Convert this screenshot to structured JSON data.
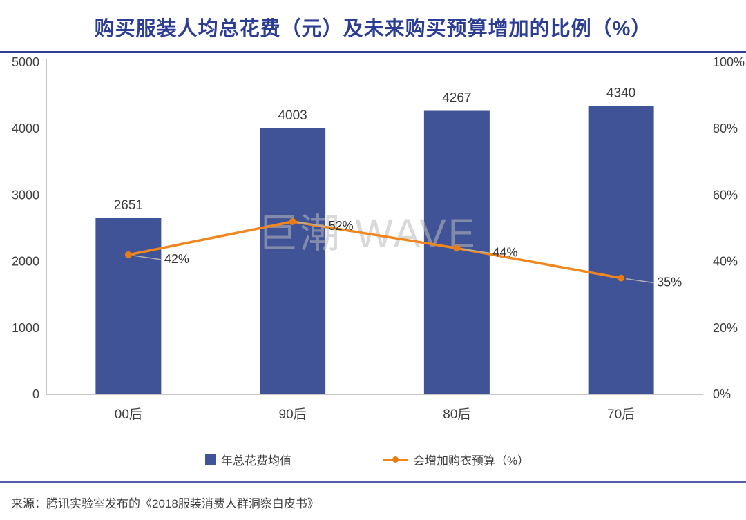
{
  "title": "购买服装人均总花费（元）及未来购买预算增加的比例（%）",
  "watermark": "巨潮  WAVE",
  "source": "来源：腾讯实验室发布的《2018服装消费人群洞察白皮书》",
  "colors": {
    "bar": "#3f5396",
    "line": "#f0861d",
    "marker": "#e87d15",
    "title": "#2c3d94",
    "divider_top": "#2e3f94",
    "divider_bottom": "#575cab",
    "axis_line": "#c6c6c6",
    "text": "#3f3f3f",
    "leader": "#b0b0b0",
    "watermark": "rgba(185,185,185,0.55)"
  },
  "chart_data": {
    "type": "bar+line combo",
    "title": "购买服装人均总花费（元）及未来购买预算增加的比例（%）",
    "categories": [
      "00后",
      "90后",
      "80后",
      "70后"
    ],
    "series": [
      {
        "name": "年总花费均值",
        "type": "bar",
        "axis": "left",
        "values": [
          2651,
          4003,
          4267,
          4340
        ],
        "labels": [
          "2651",
          "4003",
          "4267",
          "4340"
        ]
      },
      {
        "name": "会增加购衣预算（%）",
        "type": "line",
        "axis": "right",
        "values": [
          42,
          52,
          44,
          35
        ],
        "labels": [
          "42%",
          "52%",
          "44%",
          "35%"
        ]
      }
    ],
    "left_axis": {
      "min": 0,
      "max": 5000,
      "ticks": [
        "5000",
        "4000",
        "3000",
        "2000",
        "1000",
        "0"
      ]
    },
    "right_axis": {
      "min": 0,
      "max": 100,
      "ticks": [
        "100%",
        "80%",
        "60%",
        "40%",
        "20%",
        "0%"
      ]
    },
    "grid": false,
    "legend_position": "bottom",
    "legend": [
      {
        "label": "年总花费均值",
        "type": "bar"
      },
      {
        "label": "会增加购衣预算（%）",
        "type": "line"
      }
    ]
  }
}
